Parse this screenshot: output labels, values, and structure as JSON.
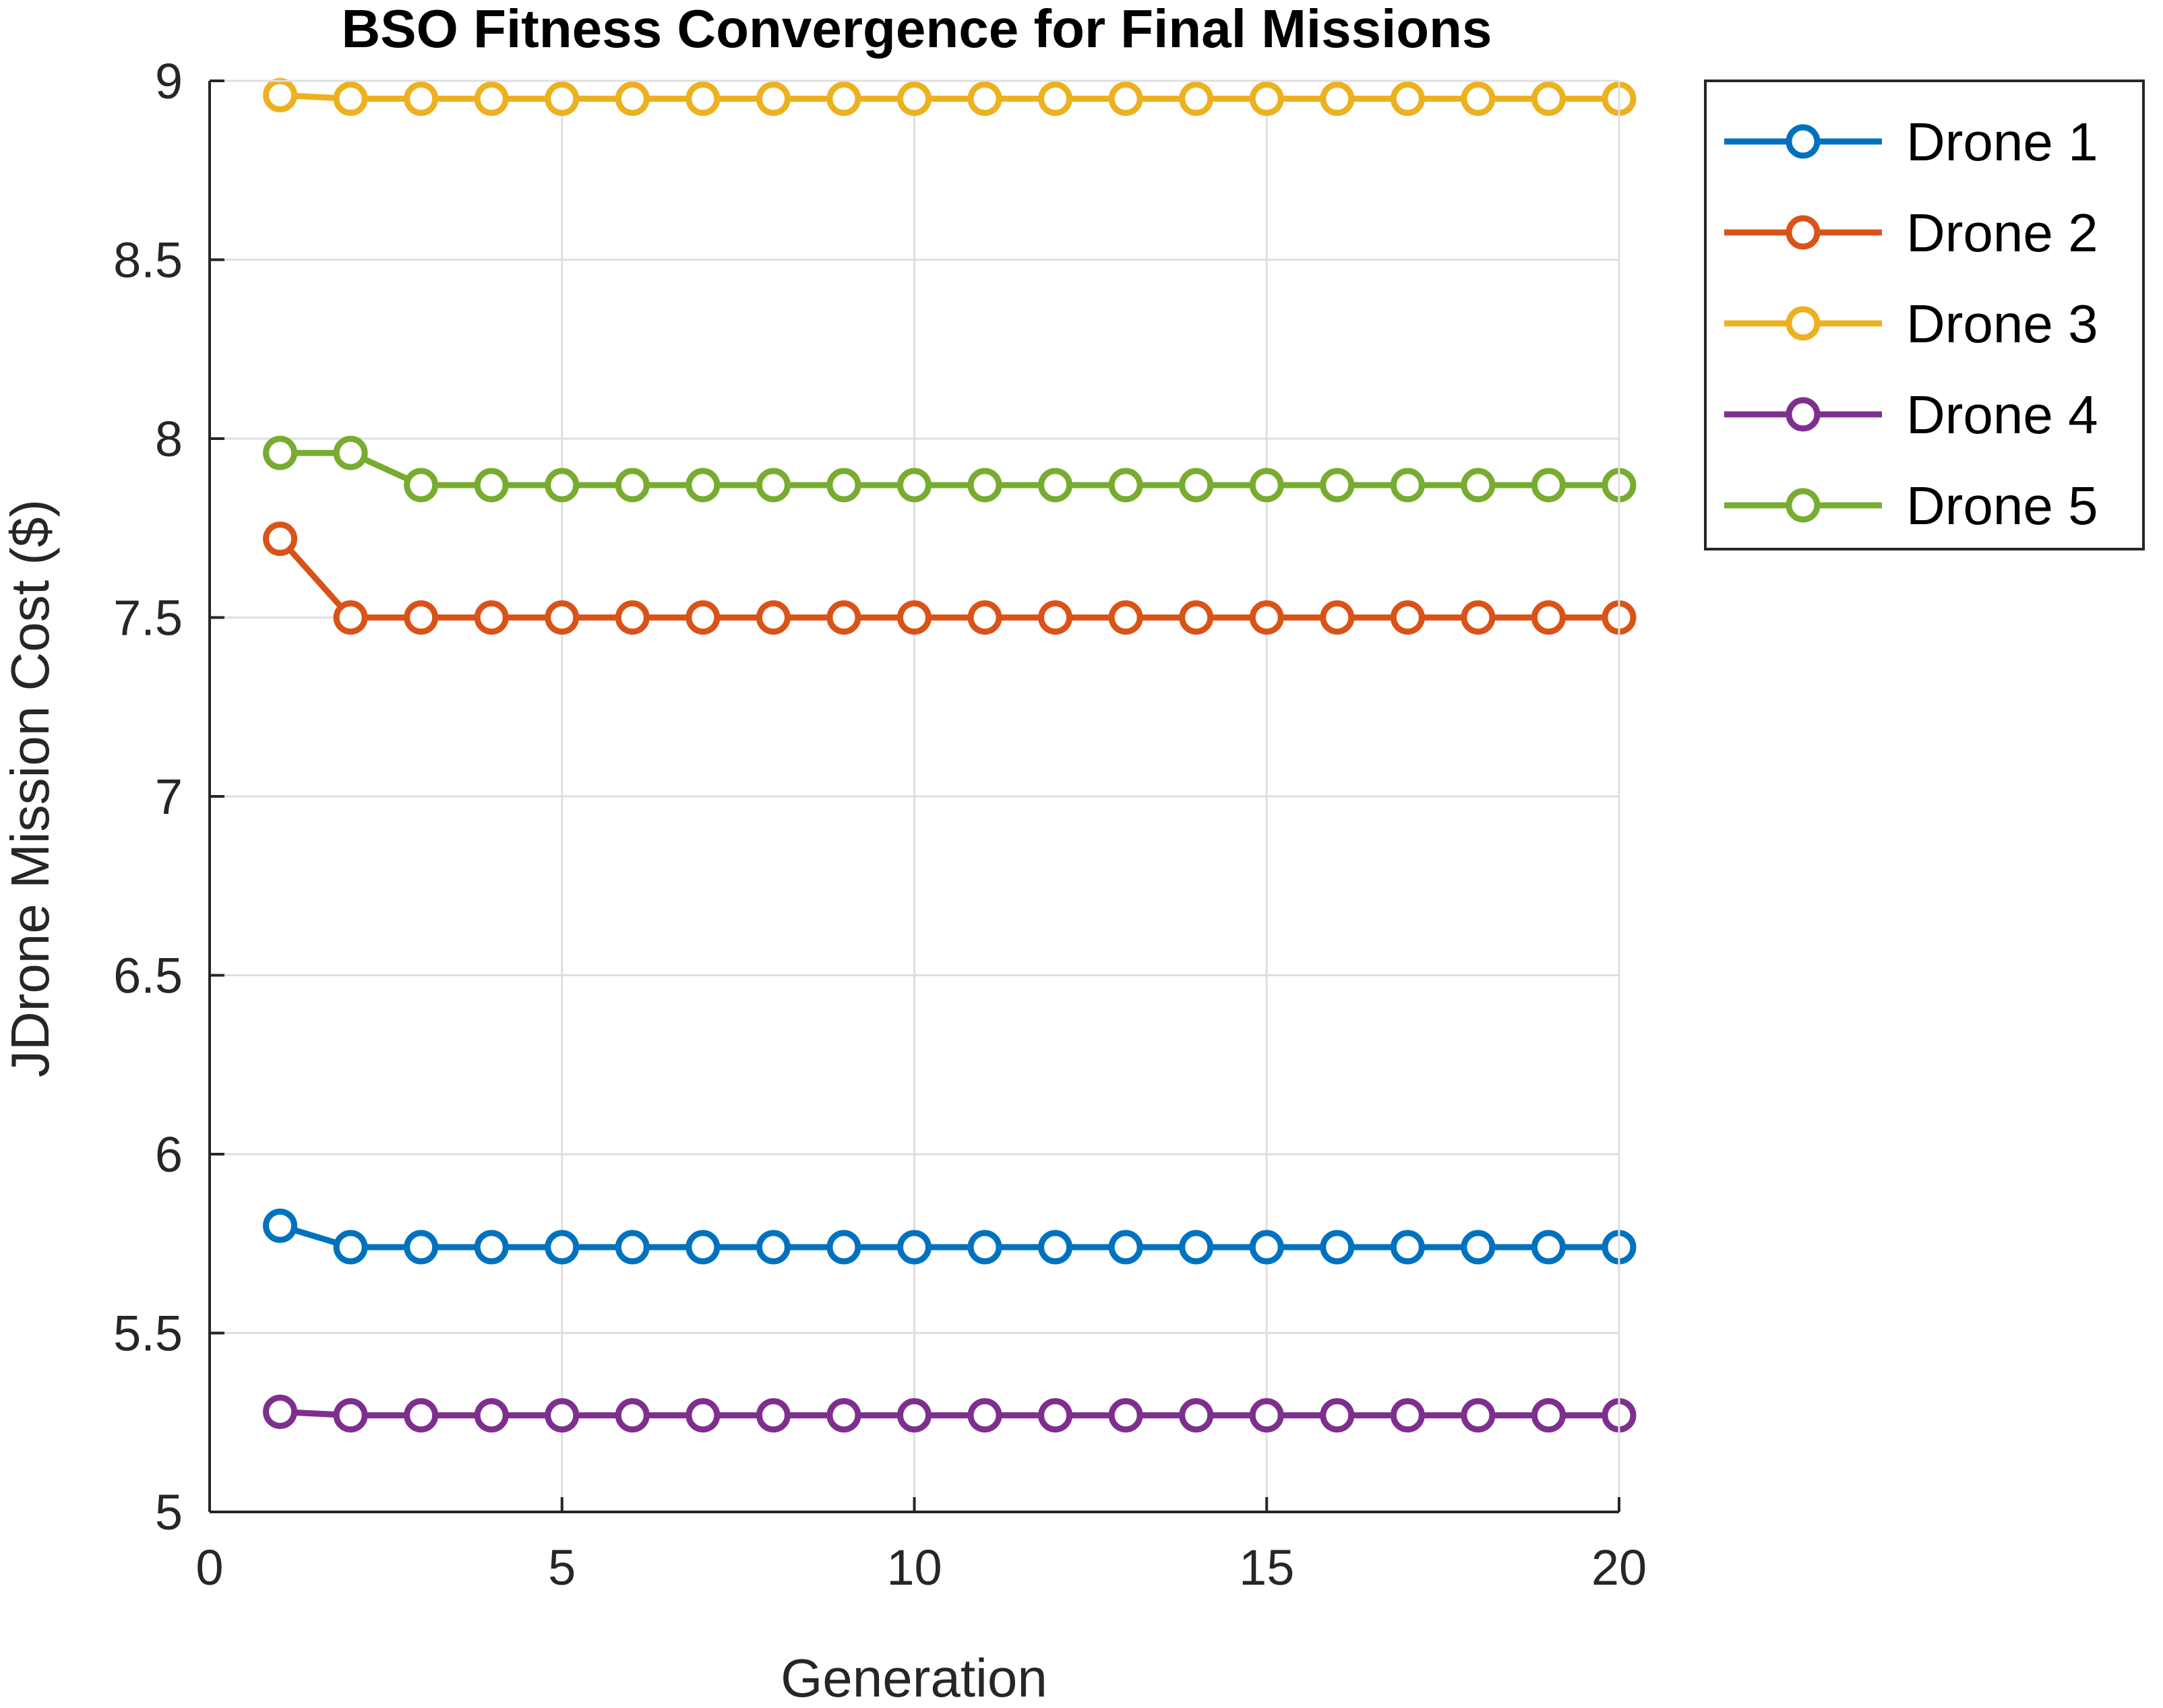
{
  "chart_data": {
    "type": "line",
    "title": "BSO Fitness Convergence for Final Missions",
    "xlabel": "Generation",
    "ylabel": "JDrone Mission Cost ($)",
    "xlim": [
      0,
      20
    ],
    "ylim": [
      5,
      9
    ],
    "xticks": [
      0,
      5,
      10,
      15,
      20
    ],
    "yticks": [
      5,
      5.5,
      6,
      6.5,
      7,
      7.5,
      8,
      8.5,
      9
    ],
    "ytick_labels": [
      "5",
      "5.5",
      "6",
      "6.5",
      "7",
      "7.5",
      "8",
      "8.5",
      "9"
    ],
    "grid": true,
    "legend_location": "outside-top-right",
    "x": [
      1,
      2,
      3,
      4,
      5,
      6,
      7,
      8,
      9,
      10,
      11,
      12,
      13,
      14,
      15,
      16,
      17,
      18,
      19,
      20
    ],
    "series": [
      {
        "name": "Drone 1",
        "color": "#0072BD",
        "marker": "circle",
        "values": [
          5.8,
          5.74,
          5.74,
          5.74,
          5.74,
          5.74,
          5.74,
          5.74,
          5.74,
          5.74,
          5.74,
          5.74,
          5.74,
          5.74,
          5.74,
          5.74,
          5.74,
          5.74,
          5.74,
          5.74
        ]
      },
      {
        "name": "Drone 2",
        "color": "#D95319",
        "marker": "circle",
        "values": [
          7.72,
          7.5,
          7.5,
          7.5,
          7.5,
          7.5,
          7.5,
          7.5,
          7.5,
          7.5,
          7.5,
          7.5,
          7.5,
          7.5,
          7.5,
          7.5,
          7.5,
          7.5,
          7.5,
          7.5
        ]
      },
      {
        "name": "Drone 3",
        "color": "#EDB120",
        "marker": "circle",
        "values": [
          8.96,
          8.95,
          8.95,
          8.95,
          8.95,
          8.95,
          8.95,
          8.95,
          8.95,
          8.95,
          8.95,
          8.95,
          8.95,
          8.95,
          8.95,
          8.95,
          8.95,
          8.95,
          8.95,
          8.95
        ]
      },
      {
        "name": "Drone 4",
        "color": "#7E2F8E",
        "marker": "circle",
        "values": [
          5.28,
          5.27,
          5.27,
          5.27,
          5.27,
          5.27,
          5.27,
          5.27,
          5.27,
          5.27,
          5.27,
          5.27,
          5.27,
          5.27,
          5.27,
          5.27,
          5.27,
          5.27,
          5.27,
          5.27
        ]
      },
      {
        "name": "Drone 5",
        "color": "#77AC30",
        "marker": "circle",
        "values": [
          7.96,
          7.96,
          7.87,
          7.87,
          7.87,
          7.87,
          7.87,
          7.87,
          7.87,
          7.87,
          7.87,
          7.87,
          7.87,
          7.87,
          7.87,
          7.87,
          7.87,
          7.87,
          7.87,
          7.87
        ]
      }
    ]
  }
}
